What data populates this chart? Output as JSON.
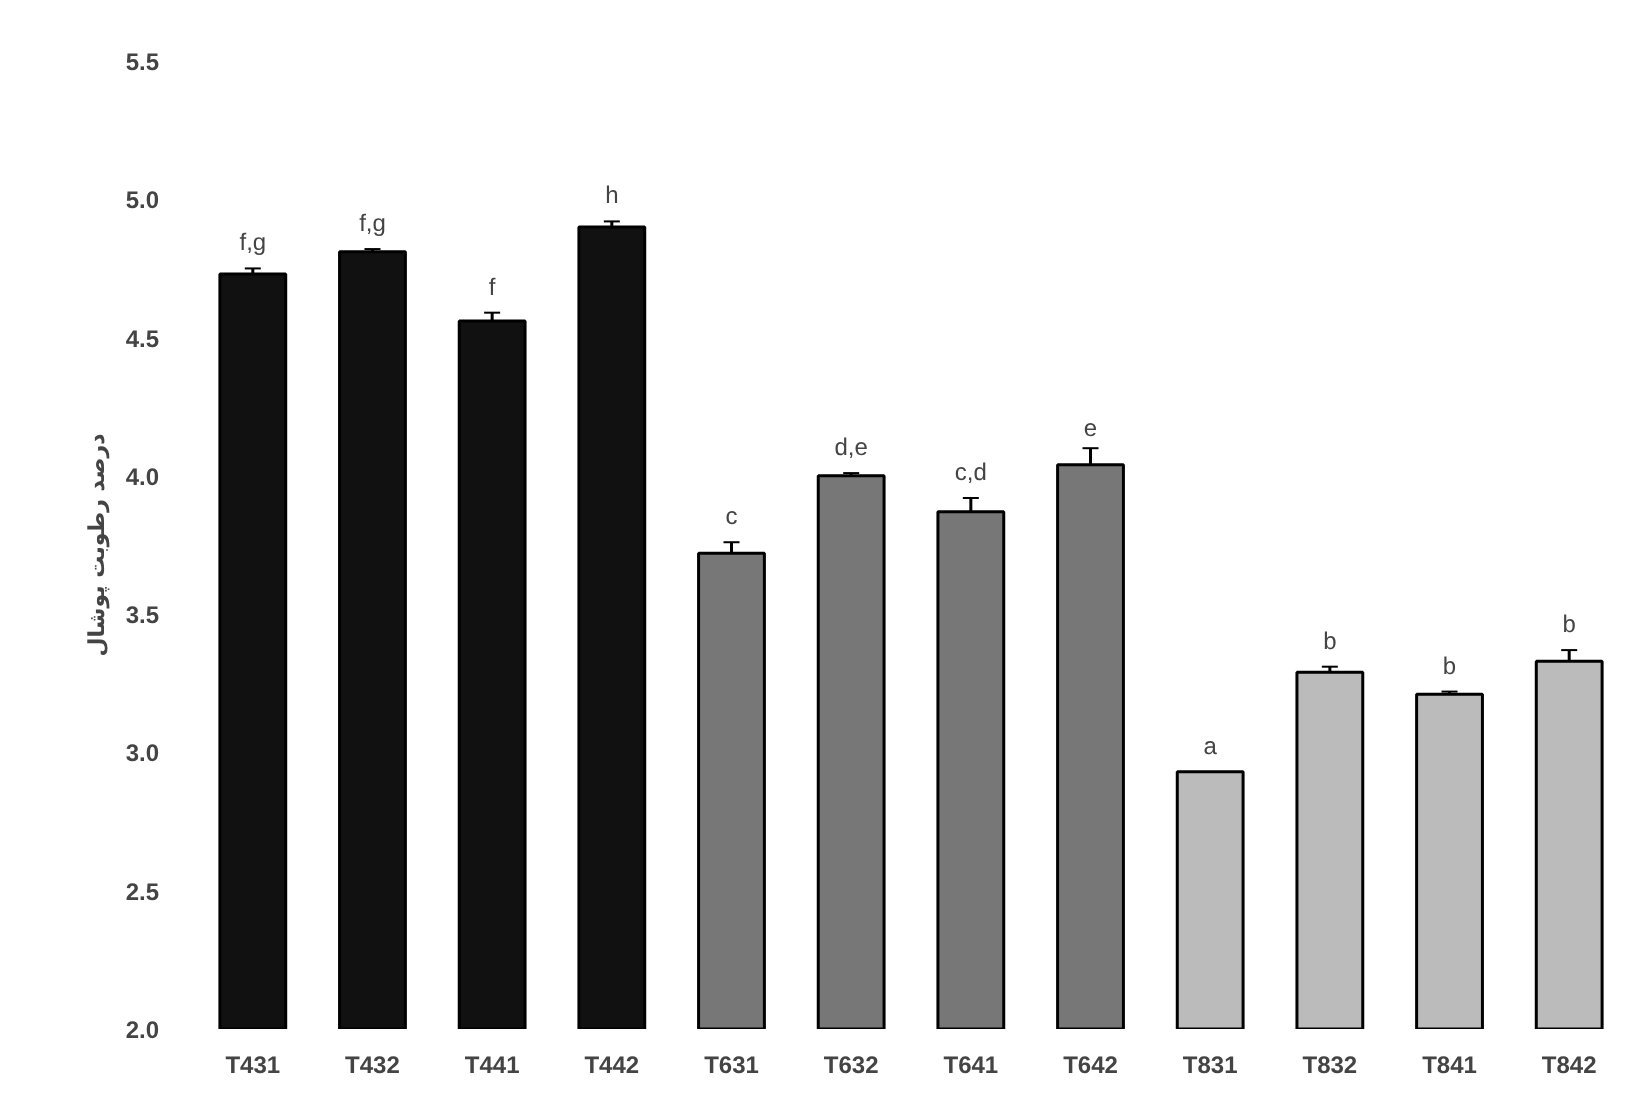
{
  "chart_data": {
    "type": "bar",
    "ylabel": "درصد رطوبت پوشال",
    "categories": [
      "T431",
      "T432",
      "T441",
      "T442",
      "T631",
      "T632",
      "T641",
      "T642",
      "T831",
      "T832",
      "T841",
      "T842"
    ],
    "values": [
      4.73,
      4.81,
      4.56,
      4.9,
      3.72,
      4.0,
      3.87,
      4.04,
      2.93,
      3.29,
      3.21,
      3.33
    ],
    "errors": [
      0.02,
      0.01,
      0.03,
      0.02,
      0.04,
      0.01,
      0.05,
      0.06,
      null,
      0.02,
      0.01,
      0.04
    ],
    "colors": [
      "#111111",
      "#111111",
      "#111111",
      "#111111",
      "#777777",
      "#777777",
      "#777777",
      "#777777",
      "#bbbbbb",
      "#bbbbbb",
      "#bbbbbb",
      "#bbbbbb"
    ],
    "ylim": [
      2.0,
      5.5
    ],
    "yticks": [
      {
        "value": 2,
        "label": "2.0"
      },
      2.5,
      {
        "value": 3,
        "label": "3.0"
      },
      3.5,
      {
        "value": 4,
        "label": "4.0"
      },
      4.5,
      {
        "value": 5,
        "label": "5.0"
      },
      5.5
    ],
    "grid": false,
    "annotations": [
      {
        "text": "f,g",
        "x": "T431",
        "y": 4.75
      },
      {
        "text": "f,g",
        "x": "T432",
        "y": 4.82
      },
      {
        "text": "f",
        "x": "T441",
        "y": 4.59
      },
      {
        "text": "h",
        "x": "T442",
        "y": 4.92
      },
      {
        "text": "c",
        "x": "T631",
        "y": 3.76
      },
      {
        "text": "d,e",
        "x": "T632",
        "y": 4.01
      },
      {
        "text": "c,d",
        "x": "T641",
        "y": 3.92
      },
      {
        "text": "e",
        "x": "T642",
        "y": 4.1
      },
      {
        "text": "a",
        "x": "T831",
        "y": 2.93
      },
      {
        "text": "b",
        "x": "T832",
        "y": 3.31
      },
      {
        "text": "b",
        "x": "T841",
        "y": 3.22
      },
      {
        "text": "b",
        "x": "T842",
        "y": 3.37
      }
    ]
  }
}
